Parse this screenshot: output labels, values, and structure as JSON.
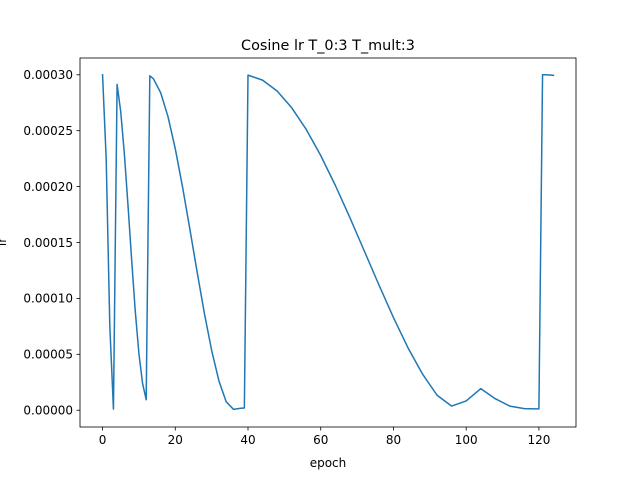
{
  "chart_data": {
    "type": "line",
    "title": "Cosine lr  T_0:3  T_mult:3",
    "xlabel": "epoch",
    "ylabel": "lr",
    "xlim": [
      -6.2,
      130.2
    ],
    "ylim": [
      -1.5e-05,
      0.000315
    ],
    "grid": false,
    "legend": "none",
    "xticks": [
      0,
      20,
      40,
      60,
      80,
      100,
      120
    ],
    "xtick_labels": [
      "0",
      "20",
      "40",
      "60",
      "80",
      "100",
      "120"
    ],
    "yticks": [
      0,
      5e-05,
      0.0001,
      0.00015,
      0.0002,
      0.00025,
      0.0003
    ],
    "ytick_labels": [
      "0.00000",
      "0.00005",
      "0.00010",
      "0.00015",
      "0.00020",
      "0.00025",
      "0.00030"
    ],
    "colors": {
      "series": "#1f77b4"
    },
    "series": [
      {
        "x": [
          0,
          1,
          2,
          3,
          4,
          5,
          6,
          7,
          8,
          9,
          10,
          11,
          12,
          13,
          14,
          16,
          18,
          20,
          22,
          24,
          26,
          28,
          30,
          32,
          34,
          36,
          38,
          39,
          40,
          44,
          48,
          52,
          56,
          60,
          64,
          68,
          72,
          76,
          80,
          84,
          88,
          92,
          96,
          100,
          104,
          108,
          112,
          116,
          119,
          120,
          121,
          122,
          124
        ],
        "y": [
          0.0003,
          0.000225,
          7.5e-05,
          1e-06,
          0.0002914,
          0.0002669,
          0.0002293,
          0.0001833,
          0.0001346,
          8.86e-05,
          5.07e-05,
          2.41e-05,
          9.4e-06,
          0.0002991,
          0.0002964,
          0.0002838,
          0.0002625,
          0.0002339,
          0.0001997,
          0.0001622,
          0.0001238,
          8.67e-05,
          5.35e-05,
          2.63e-05,
          7.6e-06,
          8e-07,
          1.8e-06,
          2e-06,
          0.0002997,
          0.0002952,
          0.0002855,
          0.0002706,
          0.0002512,
          0.0002278,
          0.0002012,
          0.0001724,
          0.0001423,
          0.0001121,
          8.29e-05,
          5.58e-05,
          3.23e-05,
          1.34e-05,
          3.7e-06,
          8.3e-06,
          1.93e-05,
          1.03e-05,
          3.7e-06,
          1.4e-06,
          1.2e-06,
          1.2e-06,
          0.0003,
          0.0003,
          0.0002995
        ]
      }
    ]
  }
}
